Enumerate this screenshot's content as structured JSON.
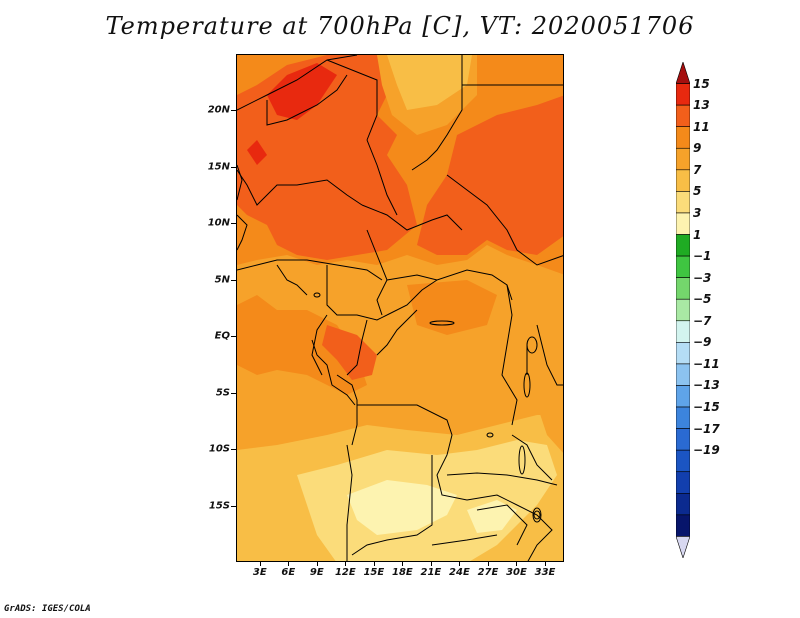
{
  "title": "Temperature at 700hPa [C], VT: 2020051706",
  "credit": "GrADS: IGES/COLA",
  "map": {
    "variable": "Temperature at 700hPa",
    "units": "C",
    "valid_time": "2020051706",
    "lat_labels": [
      "20N",
      "15N",
      "10N",
      "5N",
      "EQ",
      "5S",
      "10S",
      "15S"
    ],
    "lon_labels": [
      "3E",
      "6E",
      "9E",
      "12E",
      "15E",
      "18E",
      "21E",
      "24E",
      "27E",
      "30E",
      "33E"
    ],
    "lat_values": [
      20,
      15,
      10,
      5,
      0,
      -5,
      -10,
      -15
    ],
    "lon_values": [
      3,
      6,
      9,
      12,
      15,
      18,
      21,
      24,
      27,
      30,
      33
    ],
    "lon_range": [
      0.5,
      35
    ],
    "lat_range": [
      -20,
      25
    ]
  },
  "colorbar": {
    "labels": [
      "15",
      "13",
      "11",
      "9",
      "7",
      "5",
      "3",
      "1",
      "−1",
      "−3",
      "−5",
      "−7",
      "−9",
      "−11",
      "−13",
      "−15",
      "−17",
      "−19"
    ],
    "colors": [
      "#a50f0f",
      "#e8290f",
      "#f25f1b",
      "#f48a1a",
      "#f6a22a",
      "#f8be46",
      "#fbdc7a",
      "#fdf3b0",
      "#1fab23",
      "#3fc541",
      "#74d66c",
      "#a9e9a4",
      "#d3f4ef",
      "#b5ddf5",
      "#8cc3f0",
      "#5fa4e9",
      "#3c84dd",
      "#2a6ad2",
      "#1b55c3",
      "#123fae",
      "#0b2a8f",
      "#07156b",
      "#d8d8f0"
    ]
  },
  "fields": {
    "colors": {
      "c15": "#e8290f",
      "c13": "#f25f1b",
      "c11": "#f48a1a",
      "c9": "#f6a22a",
      "c7": "#f8be46",
      "c5": "#fbdc7a",
      "c3": "#fdf3b0"
    }
  }
}
